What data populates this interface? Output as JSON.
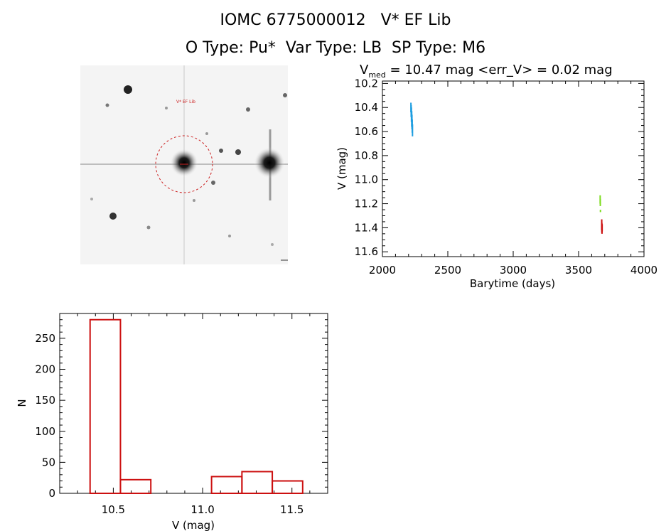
{
  "header": {
    "title_line1": "IOMC 6775000012   V* EF Lib",
    "title_line2": "O Type: Pu*  Var Type: LB  SP Type: M6"
  },
  "image_panel": {
    "target_label": "V* EF Lib"
  },
  "chart_data": [
    {
      "type": "scatter",
      "name": "light-curve",
      "title_prefix": "V",
      "title_subscript": "med",
      "title_rest": " = 10.47 mag <err_V> = 0.02 mag",
      "xlabel": "Barytime (days)",
      "ylabel": "V (mag)",
      "xlim": [
        2000,
        4000
      ],
      "ylim": [
        10.18,
        11.64
      ],
      "y_inverted": true,
      "xticks": [
        2000,
        2500,
        3000,
        3500,
        4000
      ],
      "yticks": [
        10.2,
        10.4,
        10.6,
        10.8,
        11.0,
        11.2,
        11.4,
        11.6
      ],
      "ytick_labels": [
        "10.2",
        "10.4",
        "10.6",
        "10.8",
        "11.0",
        "11.2",
        "11.4",
        "11.6"
      ],
      "series": [
        {
          "name": "epoch-1",
          "color": "#1f9ee0",
          "x": [
            2218,
            2220,
            2222,
            2224,
            2226,
            2228,
            2230
          ],
          "y_low": [
            10.36,
            10.38,
            10.4,
            10.43,
            10.46,
            10.5,
            10.54
          ],
          "y_high": [
            10.44,
            10.48,
            10.52,
            10.56,
            10.58,
            10.61,
            10.64
          ]
        },
        {
          "name": "epoch-2",
          "color": "#7ddc1f",
          "x": [
            3665,
            3666,
            3667
          ],
          "y_low": [
            11.13,
            11.16,
            11.25
          ],
          "y_high": [
            11.2,
            11.22,
            11.27
          ]
        },
        {
          "name": "epoch-3",
          "color": "#cc1010",
          "x": [
            3677,
            3678,
            3679,
            3680
          ],
          "y_low": [
            11.33,
            11.36,
            11.39,
            11.37
          ],
          "y_high": [
            11.42,
            11.44,
            11.45,
            11.43
          ]
        }
      ]
    },
    {
      "type": "bar",
      "name": "histogram",
      "xlabel": "V (mag)",
      "ylabel": "N",
      "xlim": [
        10.2,
        11.7
      ],
      "ylim": [
        0,
        290
      ],
      "xticks": [
        10.5,
        11.0,
        11.5
      ],
      "xtick_labels": [
        "10.5",
        "11.0",
        "11.5"
      ],
      "yticks": [
        0,
        50,
        100,
        150,
        200,
        250
      ],
      "ytick_labels": [
        "0",
        "50",
        "100",
        "150",
        "200",
        "250"
      ],
      "bin_edges": [
        10.37,
        10.54,
        10.71,
        10.88,
        11.05,
        11.22,
        11.39,
        11.56
      ],
      "counts": [
        280,
        22,
        0,
        0,
        27,
        35,
        20
      ],
      "color": "#cc1010"
    }
  ]
}
